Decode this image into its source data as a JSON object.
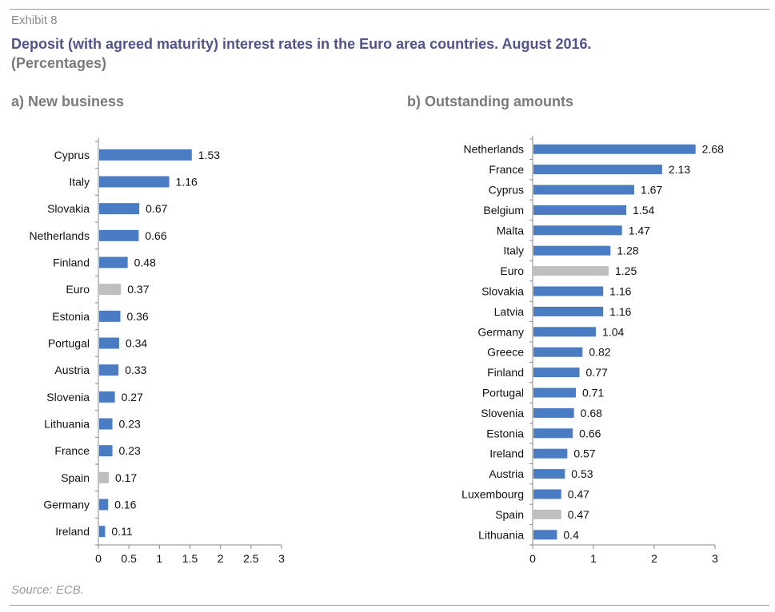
{
  "header": {
    "exhibit": "Exhibit 8",
    "title": "Deposit (with agreed maturity) interest rates in the Euro area countries. August 2016.",
    "subtitle": "(Percentages)"
  },
  "footer": {
    "source": "Source: ECB."
  },
  "colors": {
    "bar": "#4a7cc4",
    "highlight": "#bfbfbf",
    "axis": "#888888"
  },
  "chart_data": [
    {
      "type": "bar",
      "orientation": "horizontal",
      "title": "a) New business",
      "categories": [
        "Cyprus",
        "Italy",
        "Slovakia",
        "Netherlands",
        "Finland",
        "Euro",
        "Estonia",
        "Portugal",
        "Austria",
        "Slovenia",
        "Lithuania",
        "France",
        "Spain",
        "Germany",
        "Ireland"
      ],
      "values": [
        1.53,
        1.16,
        0.67,
        0.66,
        0.48,
        0.37,
        0.36,
        0.34,
        0.33,
        0.27,
        0.23,
        0.23,
        0.17,
        0.16,
        0.11
      ],
      "highlight": [
        "Euro",
        "Spain"
      ],
      "xlim": [
        0,
        3
      ],
      "xticks": [
        "0",
        "0.5",
        "1",
        "1.5",
        "2",
        "2.5",
        "3"
      ],
      "xtick_values": [
        0,
        0.5,
        1,
        1.5,
        2,
        2.5,
        3
      ],
      "grid": false,
      "legend": "none"
    },
    {
      "type": "bar",
      "orientation": "horizontal",
      "title": "b) Outstanding amounts",
      "categories": [
        "Netherlands",
        "France",
        "Cyprus",
        "Belgium",
        "Malta",
        "Italy",
        "Euro",
        "Slovakia",
        "Latvia",
        "Germany",
        "Greece",
        "Finland",
        "Portugal",
        "Slovenia",
        "Estonia",
        "Ireland",
        "Austria",
        "Luxembourg",
        "Spain",
        "Lithuania"
      ],
      "values": [
        2.68,
        2.13,
        1.67,
        1.54,
        1.47,
        1.28,
        1.25,
        1.16,
        1.16,
        1.04,
        0.82,
        0.77,
        0.71,
        0.68,
        0.66,
        0.57,
        0.53,
        0.47,
        0.47,
        0.4
      ],
      "highlight": [
        "Euro",
        "Spain"
      ],
      "xlim": [
        0,
        3
      ],
      "xticks": [
        "0",
        "1",
        "2",
        "3"
      ],
      "xtick_values": [
        0,
        1,
        2,
        3
      ],
      "grid": false,
      "legend": "none"
    }
  ]
}
